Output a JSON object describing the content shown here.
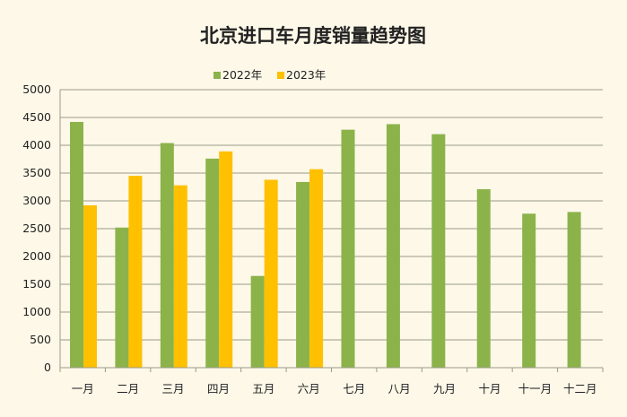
{
  "chart_data": {
    "type": "bar",
    "title": "北京进口车月度销量趋势图",
    "categories": [
      "一月",
      "二月",
      "三月",
      "四月",
      "五月",
      "六月",
      "七月",
      "八月",
      "九月",
      "十月",
      "十一月",
      "十二月"
    ],
    "series": [
      {
        "name": "2022年",
        "color": "#8bb34a",
        "values": [
          4420,
          2520,
          4040,
          3760,
          1650,
          3340,
          4280,
          4380,
          4200,
          3210,
          2770,
          2800
        ]
      },
      {
        "name": "2023年",
        "color": "#ffc000",
        "values": [
          2920,
          3450,
          3280,
          3890,
          3380,
          3570,
          null,
          null,
          null,
          null,
          null,
          null
        ]
      }
    ],
    "ylim": [
      0,
      5000
    ],
    "yticks": [
      "0",
      "500",
      "1000",
      "1500",
      "2000",
      "2500",
      "3000",
      "3500",
      "4000",
      "4500",
      "5000"
    ],
    "xlabel": "",
    "ylabel": "",
    "grid": true,
    "legend_position": "top"
  }
}
